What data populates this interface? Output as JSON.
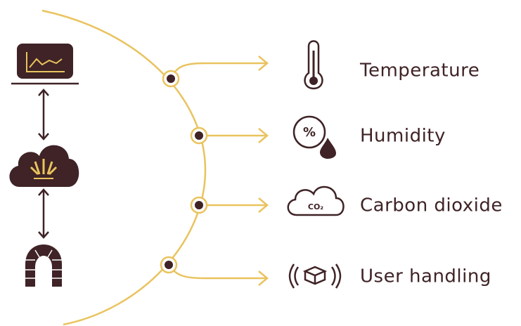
{
  "items": [
    {
      "label": "Temperature"
    },
    {
      "label": "Humidity",
      "icon_text": "%"
    },
    {
      "label": "Carbon dioxide",
      "icon_text": "CO₂"
    },
    {
      "label": "User handling"
    }
  ]
}
